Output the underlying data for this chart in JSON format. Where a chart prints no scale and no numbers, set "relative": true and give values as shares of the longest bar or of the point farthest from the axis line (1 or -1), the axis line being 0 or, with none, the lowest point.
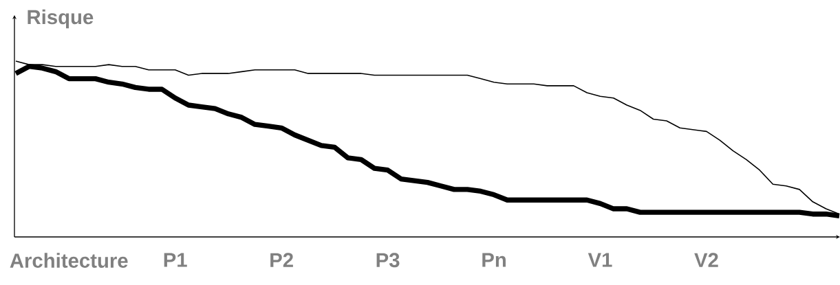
{
  "chart_data": {
    "type": "line",
    "relative": true,
    "ylabel": "Risque",
    "categories": [
      null,
      null,
      null,
      null,
      "Architecture",
      null,
      null,
      null,
      null,
      null,
      null,
      null,
      "P1",
      null,
      null,
      null,
      null,
      null,
      null,
      null,
      "P2",
      null,
      null,
      null,
      null,
      null,
      null,
      null,
      "P3",
      null,
      null,
      null,
      null,
      null,
      null,
      null,
      "Pn",
      null,
      null,
      null,
      null,
      null,
      null,
      null,
      "V1",
      null,
      null,
      null,
      null,
      null,
      null,
      null,
      "V2",
      null,
      null,
      null,
      null,
      null,
      null,
      null,
      null,
      null,
      null
    ],
    "series": [
      {
        "color": "#000000",
        "values": [
          1.0,
          0.98,
          0.98,
          0.97,
          0.97,
          0.97,
          0.97,
          0.98,
          0.97,
          0.97,
          0.95,
          0.95,
          0.95,
          0.92,
          0.93,
          0.93,
          0.93,
          0.94,
          0.95,
          0.95,
          0.95,
          0.95,
          0.93,
          0.93,
          0.93,
          0.93,
          0.93,
          0.92,
          0.92,
          0.92,
          0.92,
          0.92,
          0.92,
          0.92,
          0.92,
          0.9,
          0.88,
          0.87,
          0.87,
          0.87,
          0.86,
          0.86,
          0.86,
          0.82,
          0.8,
          0.79,
          0.75,
          0.72,
          0.67,
          0.66,
          0.62,
          0.61,
          0.6,
          0.55,
          0.49,
          0.44,
          0.38,
          0.3,
          0.29,
          0.27,
          0.2,
          0.16,
          0.13
        ]
      },
      {
        "color": "#000000",
        "values": [
          0.93,
          0.97,
          0.96,
          0.94,
          0.9,
          0.9,
          0.9,
          0.88,
          0.87,
          0.85,
          0.84,
          0.84,
          0.79,
          0.75,
          0.74,
          0.73,
          0.7,
          0.68,
          0.64,
          0.63,
          0.62,
          0.58,
          0.55,
          0.52,
          0.51,
          0.45,
          0.44,
          0.39,
          0.38,
          0.33,
          0.32,
          0.31,
          0.29,
          0.27,
          0.27,
          0.26,
          0.24,
          0.21,
          0.21,
          0.21,
          0.21,
          0.21,
          0.21,
          0.21,
          0.19,
          0.16,
          0.16,
          0.14,
          0.14,
          0.14,
          0.14,
          0.14,
          0.14,
          0.14,
          0.14,
          0.14,
          0.14,
          0.14,
          0.14,
          0.14,
          0.13,
          0.13,
          0.12
        ]
      }
    ]
  }
}
